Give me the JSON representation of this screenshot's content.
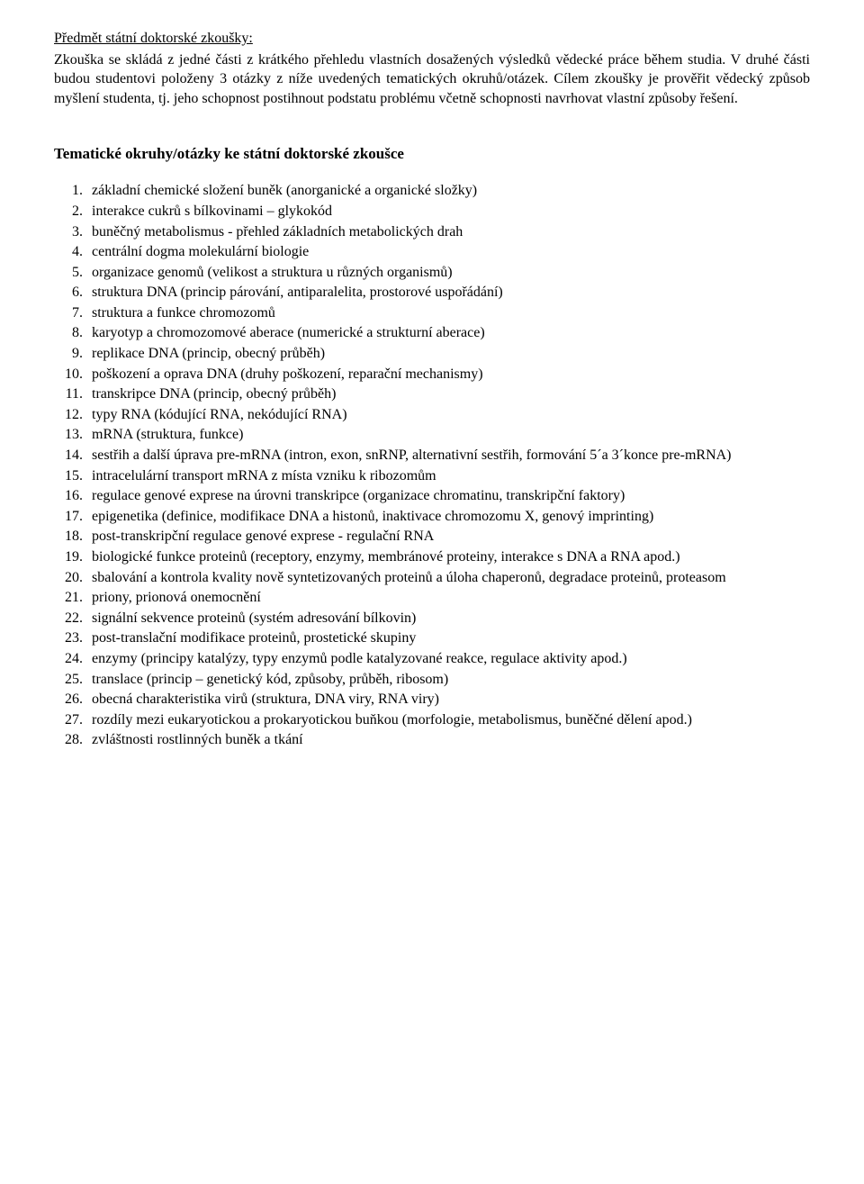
{
  "subject_heading": "Předmět státní doktorské zkoušky:",
  "intro_text": "Zkouška se skládá z jedné části z krátkého přehledu vlastních dosažených výsledků vědecké práce během studia. V druhé části budou studentovi položeny 3 otázky z níže uvedených tematických okruhů/otázek. Cílem zkoušky je prověřit vědecký způsob myšlení studenta, tj. jeho schopnost postihnout podstatu problému včetně schopnosti navrhovat vlastní způsoby řešení.",
  "section_title": "Tematické okruhy/otázky ke státní doktorské zkoušce",
  "topics": [
    "základní chemické složení buněk (anorganické a organické složky)",
    "interakce cukrů s bílkovinami – glykokód",
    "buněčný metabolismus - přehled základních metabolických drah",
    "centrální dogma molekulární biologie",
    "organizace genomů (velikost a struktura u různých organismů)",
    "struktura DNA (princip párování, antiparalelita, prostorové uspořádání)",
    "struktura a funkce chromozomů",
    "karyotyp a chromozomové aberace (numerické a strukturní aberace)",
    "replikace DNA (princip, obecný průběh)",
    "poškození a oprava DNA (druhy poškození, reparační mechanismy)",
    "transkripce DNA (princip, obecný průběh)",
    "typy RNA (kódující RNA, nekódující RNA)",
    "mRNA (struktura, funkce)",
    "sestřih a další úprava pre-mRNA (intron, exon, snRNP, alternativní sestřih, formování 5´a 3´konce pre-mRNA)",
    "intracelulární transport mRNA z místa vzniku k ribozomům",
    "regulace genové exprese na úrovni transkripce (organizace chromatinu, transkripční faktory)",
    "epigenetika (definice, modifikace DNA a histonů, inaktivace chromozomu X, genový imprinting)",
    "post-transkripční regulace genové exprese - regulační RNA",
    "biologické funkce proteinů (receptory, enzymy, membránové proteiny, interakce s DNA a RNA apod.)",
    "sbalování a kontrola kvality nově syntetizovaných proteinů a úloha chaperonů, degradace proteinů, proteasom",
    "priony, prionová onemocnění",
    "signální sekvence proteinů (systém adresování bílkovin)",
    "post-translační modifikace proteinů, prostetické skupiny",
    "enzymy (principy katalýzy, typy enzymů podle katalyzované reakce, regulace aktivity apod.)",
    "translace (princip – genetický kód, způsoby, průběh, ribosom)",
    "obecná charakteristika virů (struktura, DNA viry, RNA viry)",
    "rozdíly mezi eukaryotickou a prokaryotickou buňkou (morfologie, metabolismus, buněčné dělení apod.)",
    "zvláštnosti rostlinných buněk a tkání"
  ]
}
